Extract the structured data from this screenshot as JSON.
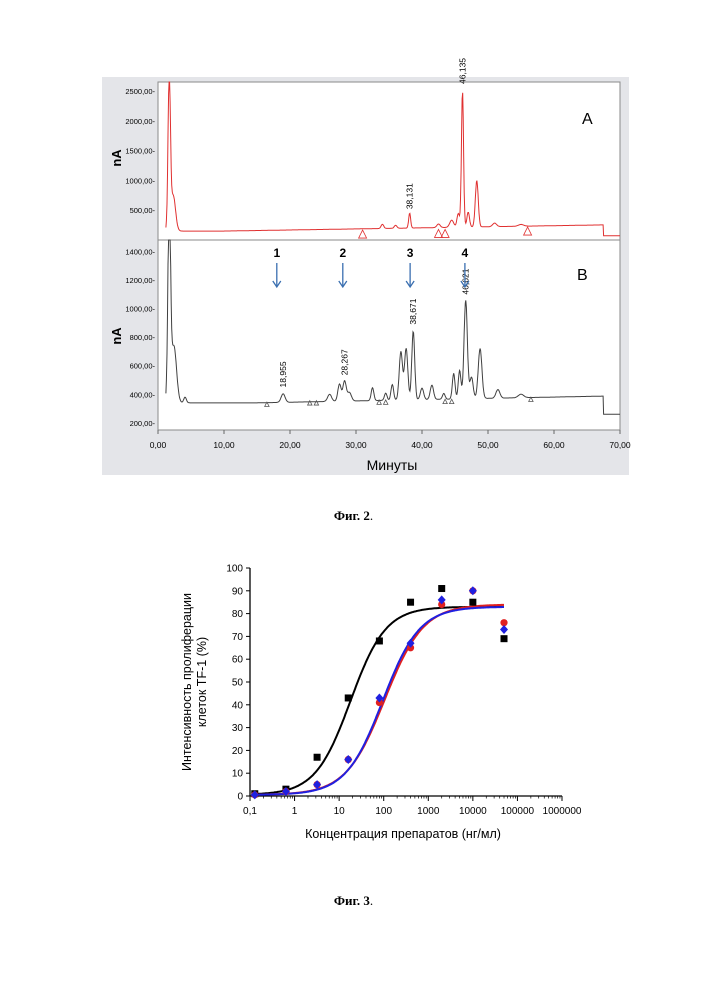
{
  "figure2": {
    "caption": "Фиг. 2",
    "x_axis": {
      "label": "Минуты",
      "range": [
        0,
        70
      ],
      "ticks": [
        "0,00",
        "10,00",
        "20,00",
        "30,00",
        "40,00",
        "50,00",
        "60,00",
        "70,00"
      ]
    },
    "panel_a": {
      "letter": "A",
      "y_label": "nA",
      "y_range": [
        0,
        2650
      ],
      "y_ticks": [
        "500,00-",
        "1000,00-",
        "1500,00-",
        "2000,00-",
        "2500,00-"
      ],
      "y_tick_values": [
        500,
        1000,
        1500,
        2000,
        2500
      ],
      "color": "#e03030",
      "peak_labels": [
        {
          "time": 38.131,
          "text": "38,131",
          "height": 450
        },
        {
          "time": 46.135,
          "text": "46,135",
          "height": 2550
        }
      ]
    },
    "panel_b": {
      "letter": "B",
      "y_label": "nA",
      "y_range": [
        150,
        1480
      ],
      "y_ticks": [
        "200,00-",
        "400,00-",
        "600,00-",
        "800,00-",
        "1000,00-",
        "1200,00-",
        "1400,00-"
      ],
      "y_tick_values": [
        200,
        400,
        600,
        800,
        1000,
        1200,
        1400
      ],
      "color": "#404040",
      "arrow_color": "#3a6fb0",
      "arrows": [
        {
          "number": "1",
          "time": 18.0
        },
        {
          "number": "2",
          "time": 28.0
        },
        {
          "number": "3",
          "time": 38.2
        },
        {
          "number": "4",
          "time": 46.5
        }
      ],
      "peak_labels": [
        {
          "time": 18.955,
          "text": "18,955",
          "height": 420
        },
        {
          "time": 28.267,
          "text": "28,267",
          "height": 505
        },
        {
          "time": 38.671,
          "text": "38,671",
          "height": 860
        },
        {
          "time": 46.621,
          "text": "46,621",
          "height": 1070
        }
      ]
    }
  },
  "figure3": {
    "caption": "Фиг. 3",
    "chart_data": {
      "type": "scatter",
      "xlabel": "Концентрация препаратов (нг/мл)",
      "ylabel_lines": [
        "Интенсивность  пролиферации",
        "клеток TF-1 (%)"
      ],
      "x_scale": "log",
      "xlim": [
        0.1,
        1000000
      ],
      "ylim": [
        0,
        100
      ],
      "x_ticks": [
        0.1,
        1,
        10,
        100,
        1000,
        10000,
        100000,
        1000000
      ],
      "x_tick_labels": [
        "0,1",
        "1",
        "10",
        "100",
        "1000",
        "10000",
        "100000",
        "1000000"
      ],
      "y_ticks": [
        0,
        10,
        20,
        30,
        40,
        50,
        60,
        70,
        80,
        90,
        100
      ],
      "y_tick_labels": [
        "0",
        "10",
        "20",
        "30",
        "40",
        "50",
        "60",
        "70",
        "80",
        "90",
        "100"
      ],
      "series": [
        {
          "color": "#000000",
          "marker": "square",
          "x": [
            0.128,
            0.64,
            3.2,
            16,
            80,
            400,
            2000,
            10000,
            50000
          ],
          "y": [
            1,
            3,
            17,
            43,
            68,
            85,
            91,
            85,
            69
          ],
          "fit": {
            "bottom": 0.5,
            "top": 83,
            "ec50": 18,
            "hill": 1.1
          }
        },
        {
          "color": "#e02020",
          "marker": "circle",
          "x": [
            0.128,
            0.64,
            3.2,
            16,
            80,
            400,
            2000,
            10000,
            50000
          ],
          "y": [
            0.5,
            2,
            5,
            16,
            41,
            65,
            84,
            90,
            76
          ],
          "fit": {
            "bottom": 0.5,
            "top": 84,
            "ec50": 105,
            "hill": 1.0
          }
        },
        {
          "color": "#2020e0",
          "marker": "diamond",
          "x": [
            0.128,
            0.64,
            3.2,
            16,
            80,
            400,
            2000,
            10000,
            50000
          ],
          "y": [
            0.5,
            2,
            5,
            16,
            43,
            67,
            86,
            90,
            73
          ],
          "fit": {
            "bottom": 0.5,
            "top": 83,
            "ec50": 95,
            "hill": 1.05
          }
        }
      ]
    }
  }
}
